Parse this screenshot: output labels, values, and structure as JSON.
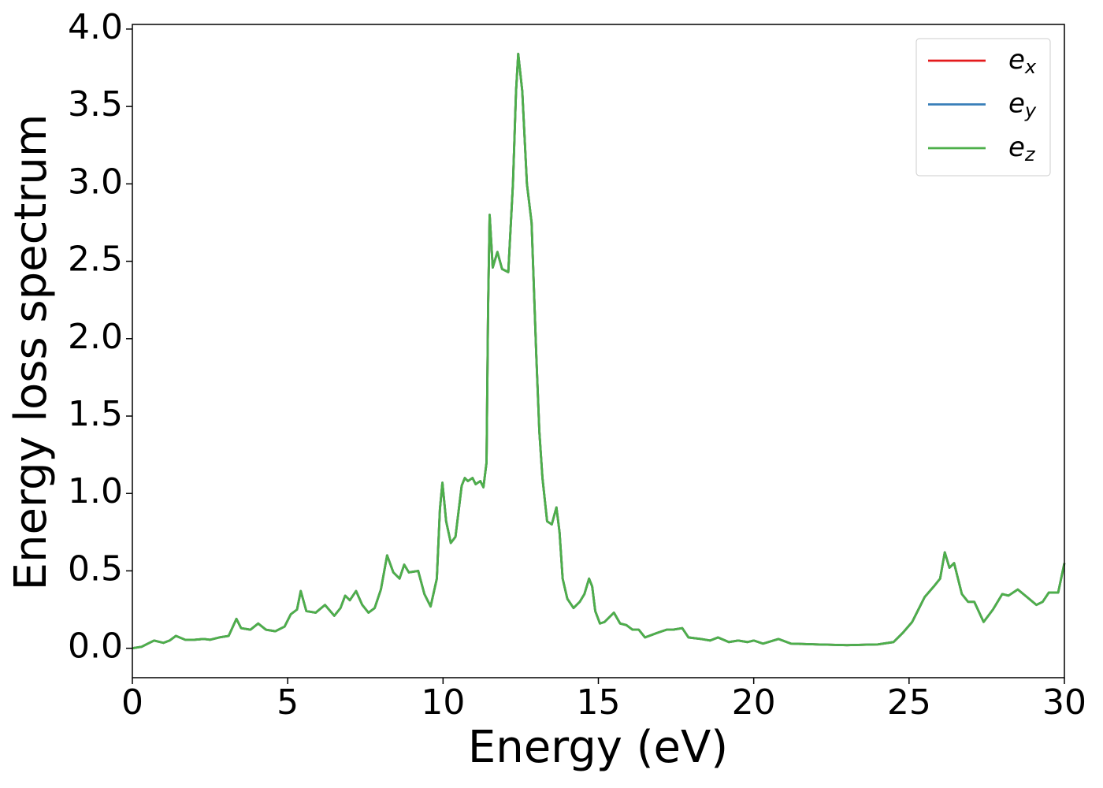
{
  "chart_data": {
    "type": "line",
    "xlabel": "Energy (eV)",
    "ylabel": "Energy loss spectrum",
    "x": [
      0,
      0.3,
      0.5,
      0.7,
      1.0,
      1.2,
      1.4,
      1.7,
      2.0,
      2.3,
      2.5,
      2.8,
      3.1,
      3.35,
      3.5,
      3.8,
      4.05,
      4.3,
      4.6,
      4.9,
      5.1,
      5.3,
      5.42,
      5.6,
      5.9,
      6.2,
      6.5,
      6.7,
      6.85,
      7.0,
      7.2,
      7.4,
      7.6,
      7.8,
      8.0,
      8.2,
      8.4,
      8.6,
      8.75,
      8.9,
      9.2,
      9.4,
      9.6,
      9.8,
      9.9,
      9.98,
      10.1,
      10.25,
      10.4,
      10.6,
      10.7,
      10.8,
      10.95,
      11.05,
      11.2,
      11.3,
      11.4,
      11.45,
      11.5,
      11.6,
      11.75,
      11.9,
      12.1,
      12.25,
      12.35,
      12.42,
      12.55,
      12.7,
      12.85,
      13.0,
      13.1,
      13.2,
      13.35,
      13.5,
      13.65,
      13.75,
      13.85,
      14.0,
      14.2,
      14.4,
      14.55,
      14.7,
      14.8,
      14.9,
      15.05,
      15.2,
      15.5,
      15.7,
      15.9,
      16.1,
      16.3,
      16.5,
      16.9,
      17.2,
      17.4,
      17.7,
      17.9,
      18.3,
      18.6,
      18.85,
      19.2,
      19.5,
      19.8,
      20.0,
      20.3,
      20.8,
      21.2,
      22.0,
      23.0,
      24.0,
      24.5,
      24.8,
      25.1,
      25.3,
      25.5,
      25.8,
      26.0,
      26.15,
      26.3,
      26.45,
      26.7,
      26.9,
      27.1,
      27.4,
      27.7,
      28.0,
      28.2,
      28.5,
      28.8,
      29.1,
      29.3,
      29.5,
      29.8,
      30.0
    ],
    "series": [
      {
        "name": "ex",
        "color": "#e41a1c",
        "values": [
          0.0,
          0.01,
          0.03,
          0.05,
          0.035,
          0.05,
          0.08,
          0.055,
          0.055,
          0.06,
          0.055,
          0.07,
          0.08,
          0.19,
          0.13,
          0.12,
          0.16,
          0.12,
          0.11,
          0.14,
          0.22,
          0.25,
          0.37,
          0.24,
          0.23,
          0.28,
          0.21,
          0.26,
          0.34,
          0.31,
          0.37,
          0.28,
          0.23,
          0.26,
          0.38,
          0.6,
          0.49,
          0.45,
          0.54,
          0.49,
          0.5,
          0.35,
          0.27,
          0.45,
          0.9,
          1.07,
          0.82,
          0.68,
          0.72,
          1.05,
          1.1,
          1.08,
          1.1,
          1.06,
          1.08,
          1.04,
          1.2,
          2.2,
          2.8,
          2.46,
          2.56,
          2.45,
          2.43,
          3.0,
          3.6,
          3.84,
          3.6,
          3.0,
          2.75,
          1.9,
          1.4,
          1.1,
          0.82,
          0.8,
          0.91,
          0.75,
          0.45,
          0.32,
          0.26,
          0.3,
          0.35,
          0.45,
          0.4,
          0.24,
          0.16,
          0.17,
          0.23,
          0.16,
          0.15,
          0.12,
          0.12,
          0.07,
          0.1,
          0.12,
          0.12,
          0.13,
          0.07,
          0.06,
          0.05,
          0.07,
          0.04,
          0.05,
          0.04,
          0.05,
          0.03,
          0.06,
          0.03,
          0.025,
          0.02,
          0.025,
          0.04,
          0.1,
          0.17,
          0.25,
          0.33,
          0.4,
          0.45,
          0.62,
          0.52,
          0.55,
          0.35,
          0.3,
          0.3,
          0.17,
          0.25,
          0.35,
          0.34,
          0.38,
          0.33,
          0.28,
          0.3,
          0.36,
          0.36,
          0.55
        ]
      },
      {
        "name": "ey",
        "color": "#377eb8",
        "values": [
          0.0,
          0.01,
          0.03,
          0.05,
          0.035,
          0.05,
          0.08,
          0.055,
          0.055,
          0.06,
          0.055,
          0.07,
          0.08,
          0.19,
          0.13,
          0.12,
          0.16,
          0.12,
          0.11,
          0.14,
          0.22,
          0.25,
          0.37,
          0.24,
          0.23,
          0.28,
          0.21,
          0.26,
          0.34,
          0.31,
          0.37,
          0.28,
          0.23,
          0.26,
          0.38,
          0.6,
          0.49,
          0.45,
          0.54,
          0.49,
          0.5,
          0.35,
          0.27,
          0.45,
          0.9,
          1.07,
          0.82,
          0.68,
          0.72,
          1.05,
          1.1,
          1.08,
          1.1,
          1.06,
          1.08,
          1.04,
          1.2,
          2.2,
          2.8,
          2.46,
          2.56,
          2.45,
          2.43,
          3.0,
          3.6,
          3.84,
          3.6,
          3.0,
          2.75,
          1.9,
          1.4,
          1.1,
          0.82,
          0.8,
          0.91,
          0.75,
          0.45,
          0.32,
          0.26,
          0.3,
          0.35,
          0.45,
          0.4,
          0.24,
          0.16,
          0.17,
          0.23,
          0.16,
          0.15,
          0.12,
          0.12,
          0.07,
          0.1,
          0.12,
          0.12,
          0.13,
          0.07,
          0.06,
          0.05,
          0.07,
          0.04,
          0.05,
          0.04,
          0.05,
          0.03,
          0.06,
          0.03,
          0.025,
          0.02,
          0.025,
          0.04,
          0.1,
          0.17,
          0.25,
          0.33,
          0.4,
          0.45,
          0.62,
          0.52,
          0.55,
          0.35,
          0.3,
          0.3,
          0.17,
          0.25,
          0.35,
          0.34,
          0.38,
          0.33,
          0.28,
          0.3,
          0.36,
          0.36,
          0.55
        ]
      },
      {
        "name": "ez",
        "color": "#4daf4a",
        "values": [
          0.0,
          0.01,
          0.03,
          0.05,
          0.035,
          0.05,
          0.08,
          0.055,
          0.055,
          0.06,
          0.055,
          0.07,
          0.08,
          0.19,
          0.13,
          0.12,
          0.16,
          0.12,
          0.11,
          0.14,
          0.22,
          0.25,
          0.37,
          0.24,
          0.23,
          0.28,
          0.21,
          0.26,
          0.34,
          0.31,
          0.37,
          0.28,
          0.23,
          0.26,
          0.38,
          0.6,
          0.49,
          0.45,
          0.54,
          0.49,
          0.5,
          0.35,
          0.27,
          0.45,
          0.9,
          1.07,
          0.82,
          0.68,
          0.72,
          1.05,
          1.1,
          1.08,
          1.1,
          1.06,
          1.08,
          1.04,
          1.2,
          2.2,
          2.8,
          2.46,
          2.56,
          2.45,
          2.43,
          3.0,
          3.6,
          3.84,
          3.6,
          3.0,
          2.75,
          1.9,
          1.4,
          1.1,
          0.82,
          0.8,
          0.91,
          0.75,
          0.45,
          0.32,
          0.26,
          0.3,
          0.35,
          0.45,
          0.4,
          0.24,
          0.16,
          0.17,
          0.23,
          0.16,
          0.15,
          0.12,
          0.12,
          0.07,
          0.1,
          0.12,
          0.12,
          0.13,
          0.07,
          0.06,
          0.05,
          0.07,
          0.04,
          0.05,
          0.04,
          0.05,
          0.03,
          0.06,
          0.03,
          0.025,
          0.02,
          0.025,
          0.04,
          0.1,
          0.17,
          0.25,
          0.33,
          0.4,
          0.45,
          0.62,
          0.52,
          0.55,
          0.35,
          0.3,
          0.3,
          0.17,
          0.25,
          0.35,
          0.34,
          0.38,
          0.33,
          0.28,
          0.3,
          0.36,
          0.36,
          0.55
        ]
      }
    ],
    "xlim": [
      0,
      30
    ],
    "xticks": [
      0,
      5,
      10,
      15,
      20,
      25,
      30
    ],
    "ylim": [
      -0.19,
      4.03
    ],
    "yticks": [
      {
        "value": 0,
        "label": "0.0"
      },
      {
        "value": 0.5,
        "label": "0.5"
      },
      {
        "value": 1,
        "label": "1.0"
      },
      {
        "value": 1.5,
        "label": "1.5"
      },
      {
        "value": 2,
        "label": "2.0"
      },
      {
        "value": 2.5,
        "label": "2.5"
      },
      {
        "value": 3,
        "label": "3.0"
      },
      {
        "value": 3.5,
        "label": "3.5"
      },
      {
        "value": 4,
        "label": "4.0"
      }
    ],
    "grid": false,
    "legend": "upper right"
  }
}
